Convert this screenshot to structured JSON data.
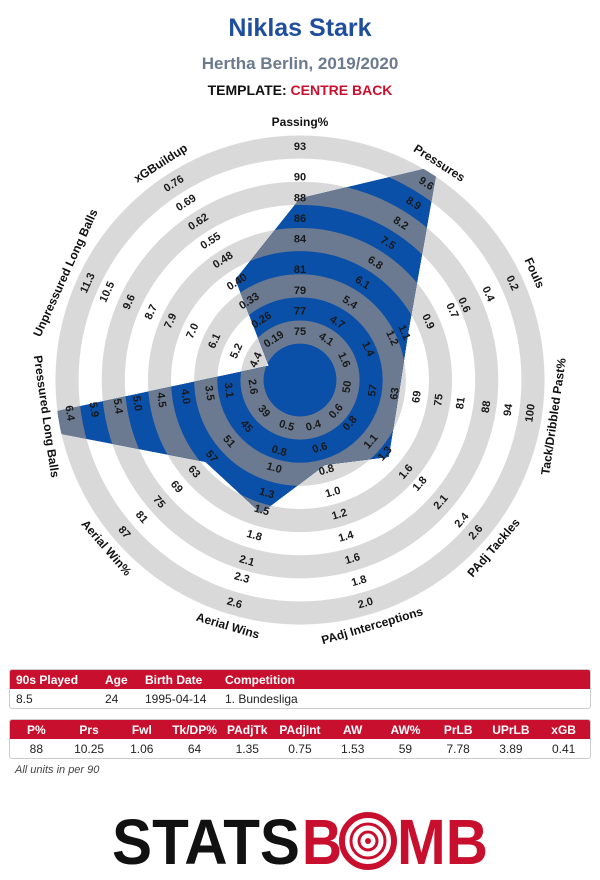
{
  "title": "Niklas Stark",
  "subtitle": "Hertha Berlin, 2019/2020",
  "template_label": "TEMPLATE:",
  "template_value": "CENTRE BACK",
  "chart_data": {
    "type": "radar",
    "color": "#0b50a8",
    "ring_color": "#d9d9d9",
    "overlap_color": "#6b7a90",
    "axes": [
      {
        "name": "Passing%",
        "lim": [
          75,
          93
        ],
        "ticks": [
          75,
          77,
          79,
          81,
          84,
          86,
          88,
          90,
          93
        ]
      },
      {
        "name": "Pressures",
        "lim": [
          4.1,
          9.6
        ],
        "ticks": [
          4.1,
          4.7,
          5.4,
          6.1,
          6.8,
          7.5,
          8.2,
          8.9,
          9.6
        ]
      },
      {
        "name": "Fouls",
        "lim": [
          1.6,
          0.2
        ],
        "ticks": [
          1.6,
          1.4,
          1.2,
          1.1,
          0.9,
          0.7,
          0.6,
          0.4,
          0.2
        ]
      },
      {
        "name": "Tack/Dribbled Past%",
        "lim": [
          50,
          100
        ],
        "ticks": [
          50,
          57,
          63,
          69,
          75,
          81,
          88,
          94,
          100
        ]
      },
      {
        "name": "PAdj Tackles",
        "lim": [
          0.6,
          2.6
        ],
        "ticks": [
          0.6,
          0.8,
          1.1,
          1.3,
          1.6,
          1.8,
          2.1,
          2.4,
          2.6
        ]
      },
      {
        "name": "PAdj Interceptions",
        "lim": [
          0.4,
          2
        ],
        "ticks": [
          0.4,
          0.6,
          0.8,
          {
            "value": 1,
            "label": "1.0"
          },
          1.2,
          1.4,
          1.6,
          1.8,
          {
            "value": 2,
            "label": "2.0"
          }
        ]
      },
      {
        "name": "Aerial Wins",
        "lim": [
          0.5,
          2.6
        ],
        "ticks": [
          0.5,
          0.8,
          {
            "value": 1,
            "label": "1.0"
          },
          1.3,
          1.5,
          1.8,
          2.1,
          2.3,
          2.6
        ]
      },
      {
        "name": "Aerial Win%",
        "lim": [
          39,
          87
        ],
        "ticks": [
          39,
          45,
          51,
          57,
          63,
          69,
          75,
          81,
          87
        ]
      },
      {
        "name": "Pressured Long Balls",
        "lim": [
          2.6,
          6.4
        ],
        "ticks": [
          2.6,
          3.1,
          3.5,
          {
            "value": 4,
            "label": "4.0"
          },
          4.5,
          {
            "value": 5,
            "label": "5.0"
          },
          5.4,
          5.9,
          6.4
        ]
      },
      {
        "name": "Unpressured Long Balls",
        "lim": [
          4.4,
          11.3
        ],
        "ticks": [
          4.4,
          5.2,
          6.1,
          {
            "value": 7,
            "label": "7.0"
          },
          7.9,
          8.7,
          9.6,
          10.5,
          11.3
        ]
      },
      {
        "name": "xGBuildup",
        "lim": [
          0.19,
          0.76
        ],
        "ticks": [
          0.19,
          0.26,
          0.33,
          {
            "value": 0.4,
            "label": "0.40"
          },
          0.48,
          0.55,
          0.62,
          0.69,
          0.76
        ]
      }
    ],
    "values": [
      88,
      10.25,
      1.06,
      64,
      1.35,
      0.75,
      1.53,
      59,
      7.78,
      3.89,
      0.41
    ]
  },
  "info_table": {
    "headers": [
      "90s Played",
      "Age",
      "Birth Date",
      "Competition"
    ],
    "row": [
      8.5,
      24,
      "1995-04-14",
      "1. Bundesliga"
    ]
  },
  "stats_table": {
    "headers": [
      "P%",
      "Prs",
      "Fwl",
      "Tk/DP%",
      "PAdjTk",
      "PAdjInt",
      "AW",
      "AW%",
      "PrLB",
      "UPrLB",
      "xGB"
    ]
  },
  "footnote": "All units in per 90",
  "logo": {
    "left": "STATS",
    "mid": "B",
    "right": "MB"
  }
}
